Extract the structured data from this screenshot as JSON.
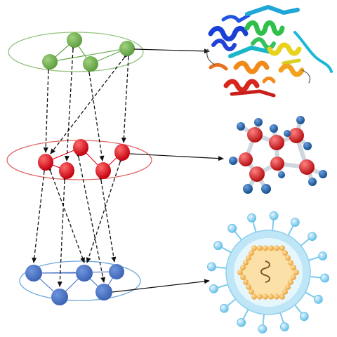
{
  "diagram": {
    "layers": [
      {
        "id": "layer-top",
        "name": "",
        "color": "#6aa84f",
        "ellipse_stroke": "#93c47d",
        "target": "protein-structure"
      },
      {
        "id": "layer-middle",
        "name": "",
        "color": "#e0001a",
        "ellipse_stroke": "#e06666",
        "target": "molecule-ring"
      },
      {
        "id": "layer-bottom",
        "name": "",
        "color": "#4472c4",
        "ellipse_stroke": "#6fa8dc",
        "target": "virus-particle"
      }
    ],
    "colors": {
      "edge": "#111111",
      "protein_ribbon": [
        "#1a3fd6",
        "#1fa7d8",
        "#2fbf4a",
        "#e8d21c",
        "#f08a18",
        "#d6281e"
      ],
      "atom_red": "#d81e1e",
      "atom_blue": "#1f5fa8",
      "bond": "#cfd6de",
      "virus_shell": "#bfe6f7",
      "virus_inner": "#e6f6fd",
      "virus_spike": "#6cc4ea",
      "capsid": "#fbe0a8",
      "capsid_bead": "#f5b95a",
      "genome": "#7a5a2a"
    },
    "icons": [
      "protein-ribbon-icon",
      "molecule-icon",
      "virus-icon"
    ]
  }
}
